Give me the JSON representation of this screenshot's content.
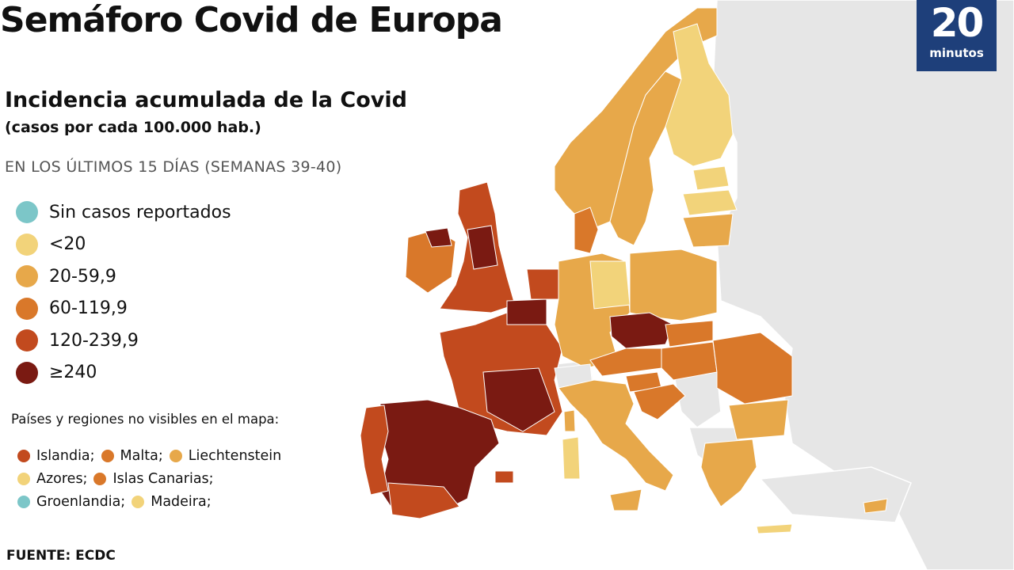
{
  "title": "Semáforo Covid de Europa",
  "logo": {
    "number": "20",
    "word": "minutos",
    "color": "#1e3f7a"
  },
  "subtitle": "Incidencia acumulada de la Covid",
  "subtitle_unit": "(casos por cada 100.000 hab.)",
  "period": "EN LOS ÚLTIMOS 15 DÍAS (SEMANAS 39-40)",
  "legend": [
    {
      "label": "Sin casos reportados",
      "color": "#7cc6c8"
    },
    {
      "label": "<20",
      "color": "#f2d37a"
    },
    {
      "label": "20-59,9",
      "color": "#e7a84a"
    },
    {
      "label": "60-119,9",
      "color": "#d9782a"
    },
    {
      "label": "120-239,9",
      "color": "#c24a1e"
    },
    {
      "label": "≥240",
      "color": "#7a1a12"
    }
  ],
  "hidden_regions_title": "Países y regiones no visibles en el mapa:",
  "hidden_regions": [
    [
      {
        "name": "Islandia;",
        "color": "#c24a1e"
      },
      {
        "name": "Malta;",
        "color": "#d9782a"
      },
      {
        "name": "Liechtenstein",
        "color": "#e7a84a"
      }
    ],
    [
      {
        "name": "Azores;",
        "color": "#f2d37a"
      },
      {
        "name": "Islas Canarias;",
        "color": "#d9782a"
      }
    ],
    [
      {
        "name": "Groenlandia;",
        "color": "#7cc6c8"
      },
      {
        "name": "Madeira;",
        "color": "#f2d37a"
      }
    ]
  ],
  "source": "FUENTE: ECDC",
  "map": {
    "nodata_color": "#e6e6e6",
    "countries": [
      {
        "name": "Spain",
        "category": "≥240"
      },
      {
        "name": "Portugal",
        "category": "120-239,9"
      },
      {
        "name": "France",
        "category": "120-239,9"
      },
      {
        "name": "Belgium",
        "category": "≥240"
      },
      {
        "name": "Netherlands",
        "category": "120-239,9"
      },
      {
        "name": "United Kingdom",
        "category": "120-239,9"
      },
      {
        "name": "Ireland",
        "category": "60-119,9"
      },
      {
        "name": "Germany",
        "category": "20-59,9"
      },
      {
        "name": "Switzerland",
        "category": "60-119,9"
      },
      {
        "name": "Italy",
        "category": "20-59,9"
      },
      {
        "name": "Austria",
        "category": "60-119,9"
      },
      {
        "name": "Czechia",
        "category": "≥240"
      },
      {
        "name": "Poland",
        "category": "20-59,9"
      },
      {
        "name": "Slovakia",
        "category": "60-119,9"
      },
      {
        "name": "Hungary",
        "category": "60-119,9"
      },
      {
        "name": "Romania",
        "category": "60-119,9"
      },
      {
        "name": "Bulgaria",
        "category": "20-59,9"
      },
      {
        "name": "Greece",
        "category": "20-59,9"
      },
      {
        "name": "Croatia",
        "category": "60-119,9"
      },
      {
        "name": "Slovenia",
        "category": "60-119,9"
      },
      {
        "name": "Denmark",
        "category": "60-119,9"
      },
      {
        "name": "Norway",
        "category": "20-59,9"
      },
      {
        "name": "Sweden",
        "category": "20-59,9"
      },
      {
        "name": "Finland",
        "category": "<20"
      },
      {
        "name": "Estonia",
        "category": "<20"
      },
      {
        "name": "Latvia",
        "category": "<20"
      },
      {
        "name": "Lithuania",
        "category": "20-59,9"
      },
      {
        "name": "Cyprus",
        "category": "20-59,9"
      }
    ]
  }
}
